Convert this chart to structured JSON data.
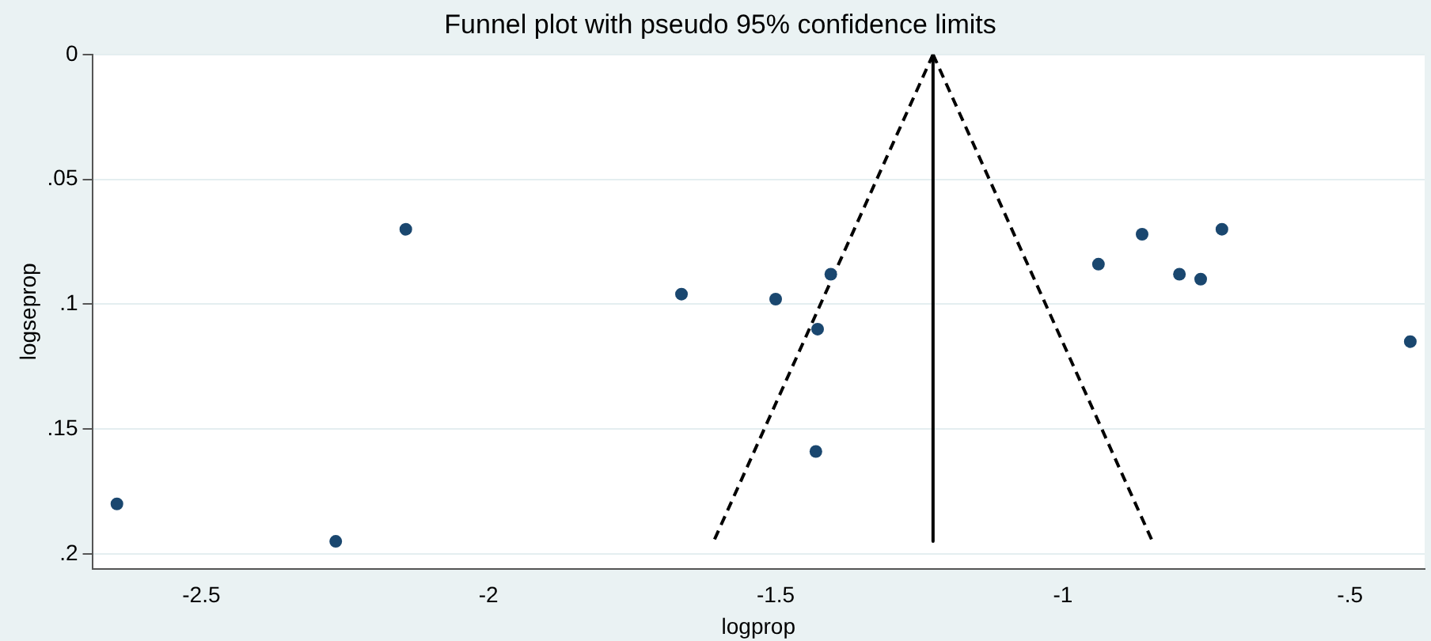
{
  "chart_data": {
    "type": "scatter",
    "title": "Funnel plot with pseudo 95% confidence limits",
    "xlabel": "logprop",
    "ylabel": "logseprop",
    "xlim": [
      -2.69,
      -0.37
    ],
    "xticks": [
      {
        "value": -2.5,
        "label": "-2.5"
      },
      {
        "value": -2,
        "label": "-2"
      },
      {
        "value": -1.5,
        "label": "-1.5"
      },
      {
        "value": -1,
        "label": "-1"
      },
      {
        "value": -0.5,
        "label": "-.5"
      }
    ],
    "ylim": [
      0.206,
      0
    ],
    "yticks": [
      {
        "value": 0,
        "label": "0"
      },
      {
        "value": 0.05,
        "label": ".05"
      },
      {
        "value": 0.1,
        "label": ".1"
      },
      {
        "value": 0.15,
        "label": ".15"
      },
      {
        "value": 0.2,
        "label": ".2"
      }
    ],
    "grid": "y",
    "legend": false,
    "marker": "circle",
    "series": [
      {
        "color": "#1a476f",
        "x": [
          -2.647,
          -2.266,
          -2.144,
          -1.664,
          -1.5,
          -1.404,
          -1.427,
          -1.43,
          -0.938,
          -0.862,
          -0.797,
          -0.76,
          -0.723,
          -0.395
        ],
        "values": [
          0.18,
          0.195,
          0.07,
          0.096,
          0.098,
          0.088,
          0.11,
          0.159,
          0.084,
          0.072,
          0.088,
          0.09,
          0.07,
          0.115
        ]
      },
      {
        "type": "line",
        "color": "#000000",
        "line_style": "solid",
        "marker": "none",
        "x": [
          -1.226,
          -1.226
        ],
        "values": [
          0,
          0.195
        ]
      },
      {
        "type": "line",
        "color": "#000000",
        "line_style": "dashed",
        "marker": "none",
        "x": [
          -1.226,
          -1.608
        ],
        "values": [
          0,
          0.195
        ]
      },
      {
        "type": "line",
        "color": "#000000",
        "line_style": "dashed",
        "marker": "none",
        "x": [
          -1.226,
          -0.844
        ],
        "values": [
          0,
          0.195
        ]
      }
    ]
  }
}
